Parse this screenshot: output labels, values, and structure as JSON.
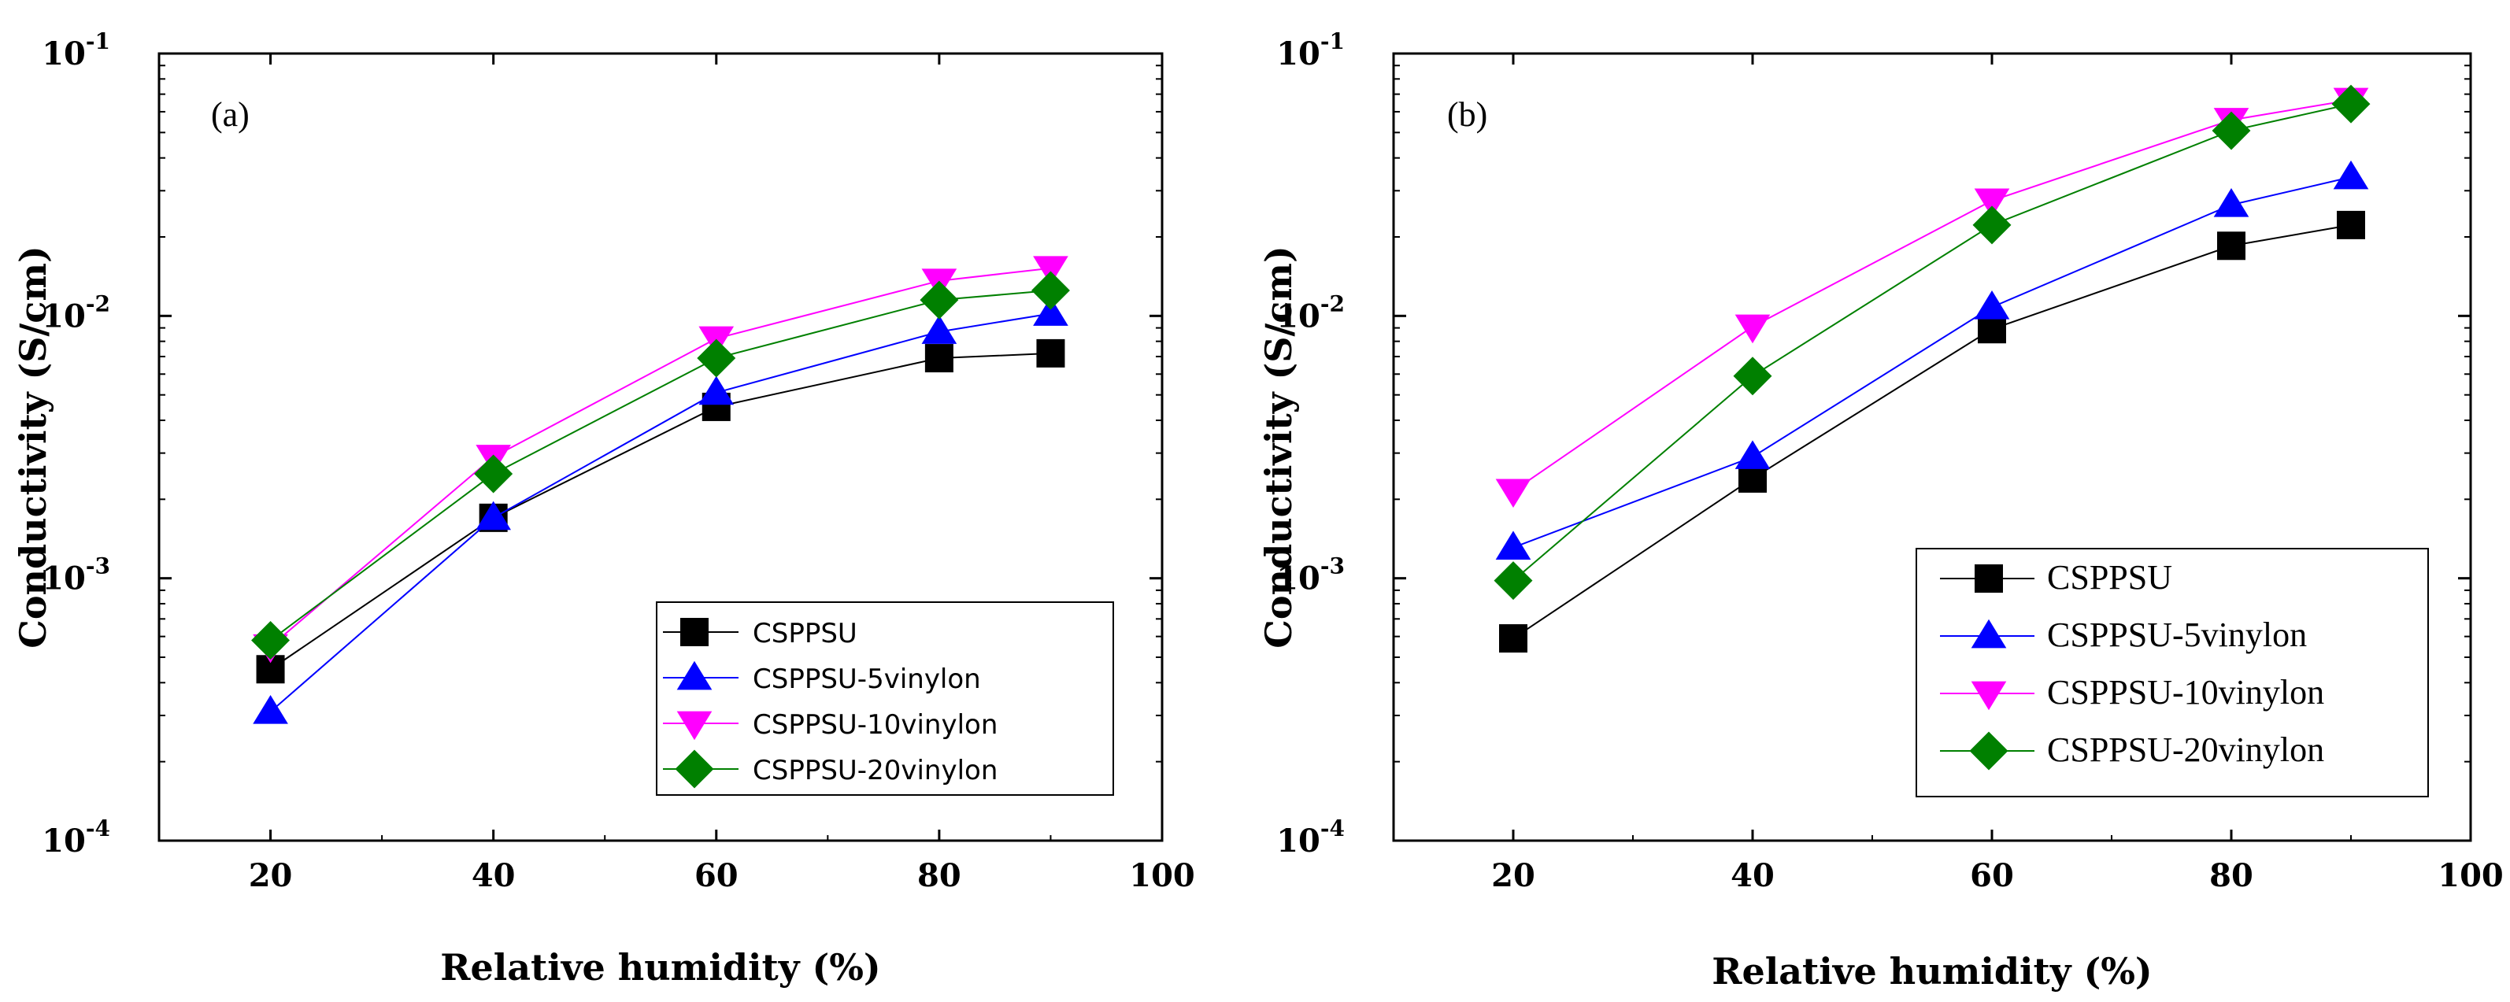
{
  "chart_data": [
    {
      "type": "line",
      "panel_label": "(a)",
      "xlabel": "Relative humidity (%)",
      "ylabel": "Conductivity (S/cm)",
      "xlim": [
        10,
        100
      ],
      "ylim": [
        0.0001,
        0.1
      ],
      "yscale": "log",
      "x_ticks": [
        "20",
        "40",
        "60",
        "80",
        "100"
      ],
      "y_ticks": [
        {
          "base": "10",
          "exp": "-4"
        },
        {
          "base": "10",
          "exp": "-3"
        },
        {
          "base": "10",
          "exp": "-2"
        },
        {
          "base": "10",
          "exp": "-1"
        }
      ],
      "legend_position": "bottom-right",
      "x": [
        20,
        40,
        60,
        80,
        90
      ],
      "series": [
        {
          "name": "CSPPSU",
          "marker": "square",
          "color": "#000000",
          "values": [
            0.00045,
            0.0017,
            0.0045,
            0.0069,
            0.0072
          ]
        },
        {
          "name": "CSPPSU-5vinylon",
          "marker": "triangle-up",
          "color": "#0000ff",
          "values": [
            0.00031,
            0.0017,
            0.0051,
            0.0087,
            0.0102
          ]
        },
        {
          "name": "CSPPSU-10vinylon",
          "marker": "triangle-down",
          "color": "#ff00ff",
          "values": [
            0.00055,
            0.0029,
            0.0082,
            0.0136,
            0.0152
          ]
        },
        {
          "name": "CSPPSU-20vinylon",
          "marker": "diamond",
          "color": "#008000",
          "values": [
            0.00058,
            0.0025,
            0.0069,
            0.0115,
            0.0125
          ]
        }
      ]
    },
    {
      "type": "line",
      "panel_label": "(b)",
      "xlabel": "Relative humidity (%)",
      "ylabel": "Conductivity (S/cm)",
      "xlim": [
        10,
        100
      ],
      "ylim": [
        0.0001,
        0.1
      ],
      "yscale": "log",
      "x_ticks": [
        "20",
        "40",
        "60",
        "80",
        "100"
      ],
      "y_ticks": [
        {
          "base": "10",
          "exp": "-4"
        },
        {
          "base": "10",
          "exp": "-3"
        },
        {
          "base": "10",
          "exp": "-2"
        },
        {
          "base": "10",
          "exp": "-1"
        }
      ],
      "legend_position": "bottom-right",
      "x": [
        20,
        40,
        60,
        80,
        90
      ],
      "series": [
        {
          "name": "CSPPSU",
          "marker": "square",
          "color": "#000000",
          "values": [
            0.00059,
            0.0024,
            0.0089,
            0.0185,
            0.0222
          ]
        },
        {
          "name": "CSPPSU-5vinylon",
          "marker": "triangle-up",
          "color": "#0000ff",
          "values": [
            0.00131,
            0.0029,
            0.0108,
            0.0265,
            0.0338
          ]
        },
        {
          "name": "CSPPSU-10vinylon",
          "marker": "triangle-down",
          "color": "#ff00ff",
          "values": [
            0.00215,
            0.0091,
            0.0275,
            0.0558,
            0.0665
          ]
        },
        {
          "name": "CSPPSU-20vinylon",
          "marker": "diamond",
          "color": "#008000",
          "values": [
            0.00098,
            0.0059,
            0.0222,
            0.0508,
            0.0642
          ]
        }
      ]
    }
  ]
}
